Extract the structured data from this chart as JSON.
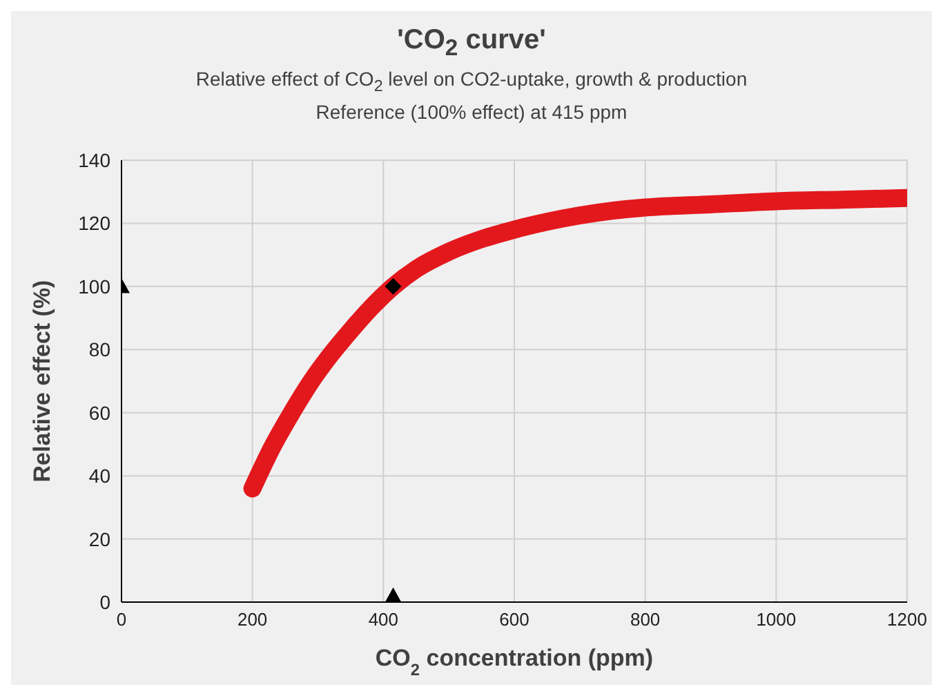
{
  "chart_data": {
    "type": "line",
    "title": "'CO$_{2}$ curve'",
    "subtitle": "Relative effect of CO$_{2}$ level on CO2-uptake, growth & production\nReference (100% effect) at 415 ppm",
    "xlabel": "CO$_{2}$ concentration (ppm)",
    "ylabel": "Relative effect (%)",
    "xlim": [
      0,
      1200
    ],
    "xticks": [
      0,
      200,
      400,
      600,
      800,
      1000,
      1200
    ],
    "ylim": [
      0,
      140
    ],
    "yticks": [
      0,
      20,
      40,
      60,
      80,
      100,
      120,
      140
    ],
    "grid": true,
    "series": [
      {
        "color": "#e3181d",
        "marker": "none",
        "line_style": "solid",
        "x": [
          200,
          230,
          260,
          290,
          320,
          350,
          380,
          415,
          450,
          500,
          550,
          600,
          650,
          700,
          750,
          800,
          900,
          1000,
          1100,
          1200
        ],
        "values": [
          36,
          49,
          60,
          70,
          78.5,
          86,
          93,
          100,
          105.5,
          111,
          115,
          118,
          120.5,
          122.5,
          124,
          125,
          126,
          127,
          127.5,
          128
        ]
      },
      {
        "type": "scatter",
        "color": "#000000",
        "marker": "diamond",
        "x": [
          415
        ],
        "values": [
          100
        ]
      },
      {
        "type": "scatter",
        "color": "#000000",
        "marker": "triangle",
        "x": [
          0
        ],
        "values": [
          100
        ]
      },
      {
        "type": "scatter",
        "color": "#000000",
        "marker": "triangle",
        "x": [
          415
        ],
        "values": [
          2
        ]
      }
    ]
  }
}
